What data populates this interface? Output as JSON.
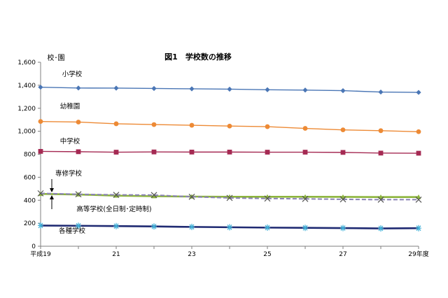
{
  "chart_data": {
    "type": "line",
    "title": "図1　学校数の推移",
    "ylabel": "校･園",
    "ylim": [
      0,
      1600
    ],
    "yticks": [
      0,
      200,
      400,
      600,
      800,
      1000,
      1200,
      1400,
      1600
    ],
    "ytick_labels": [
      "0",
      "200",
      "400",
      "600",
      "800",
      "1,000",
      "1,200",
      "1,400",
      "1,600"
    ],
    "x": [
      19,
      20,
      21,
      22,
      23,
      24,
      25,
      26,
      27,
      28,
      29
    ],
    "xtick_labels": [
      {
        "x": 19,
        "label": "平成19"
      },
      {
        "x": 21,
        "label": "21"
      },
      {
        "x": 23,
        "label": "23"
      },
      {
        "x": 25,
        "label": "25"
      },
      {
        "x": 27,
        "label": "27"
      },
      {
        "x": 29,
        "label": "29年度"
      }
    ],
    "grid": false,
    "legend": "none",
    "series": [
      {
        "name": "小学校",
        "color": "#4a76b5",
        "marker": "diamond",
        "dashed": false,
        "thick": false,
        "values": [
          1383,
          1376,
          1375,
          1372,
          1369,
          1366,
          1361,
          1358,
          1353,
          1341,
          1338
        ]
      },
      {
        "name": "幼稚園",
        "color": "#ed8a35",
        "marker": "circle",
        "dashed": false,
        "thick": false,
        "values": [
          1085,
          1080,
          1065,
          1058,
          1052,
          1045,
          1040,
          1025,
          1012,
          1005,
          996
        ]
      },
      {
        "name": "中学校",
        "color": "#a52a53",
        "marker": "square",
        "dashed": false,
        "thick": false,
        "values": [
          825,
          822,
          818,
          820,
          819,
          819,
          818,
          818,
          816,
          810,
          809
        ]
      },
      {
        "name": "専修学校",
        "color": "#8cb43c",
        "marker": "triangle",
        "dashed": false,
        "thick": true,
        "values": [
          455,
          450,
          440,
          435,
          432,
          430,
          430,
          430,
          429,
          428,
          428
        ]
      },
      {
        "name": "高等学校(全日制･定時制)",
        "color": "#8a82b4",
        "marker": "x",
        "dashed": true,
        "thick": false,
        "values": [
          460,
          452,
          447,
          445,
          430,
          420,
          415,
          412,
          408,
          405,
          405
        ]
      },
      {
        "name": "各種学校",
        "color": "#1f2a72",
        "marker": "asterisk",
        "dashed": false,
        "thick": true,
        "values": [
          180,
          178,
          175,
          172,
          168,
          165,
          162,
          160,
          158,
          155,
          157
        ]
      }
    ],
    "annotations": [
      {
        "text": "小学校",
        "target": "小学校"
      },
      {
        "text": "幼稚園",
        "target": "幼稚園"
      },
      {
        "text": "中学校",
        "target": "中学校"
      },
      {
        "text": "専修学校",
        "target": "専修学校"
      },
      {
        "text": "高等学校(全日制･定時制)",
        "target": "高等学校(全日制･定時制)"
      },
      {
        "text": "各種学校",
        "target": "各種学校"
      }
    ]
  }
}
